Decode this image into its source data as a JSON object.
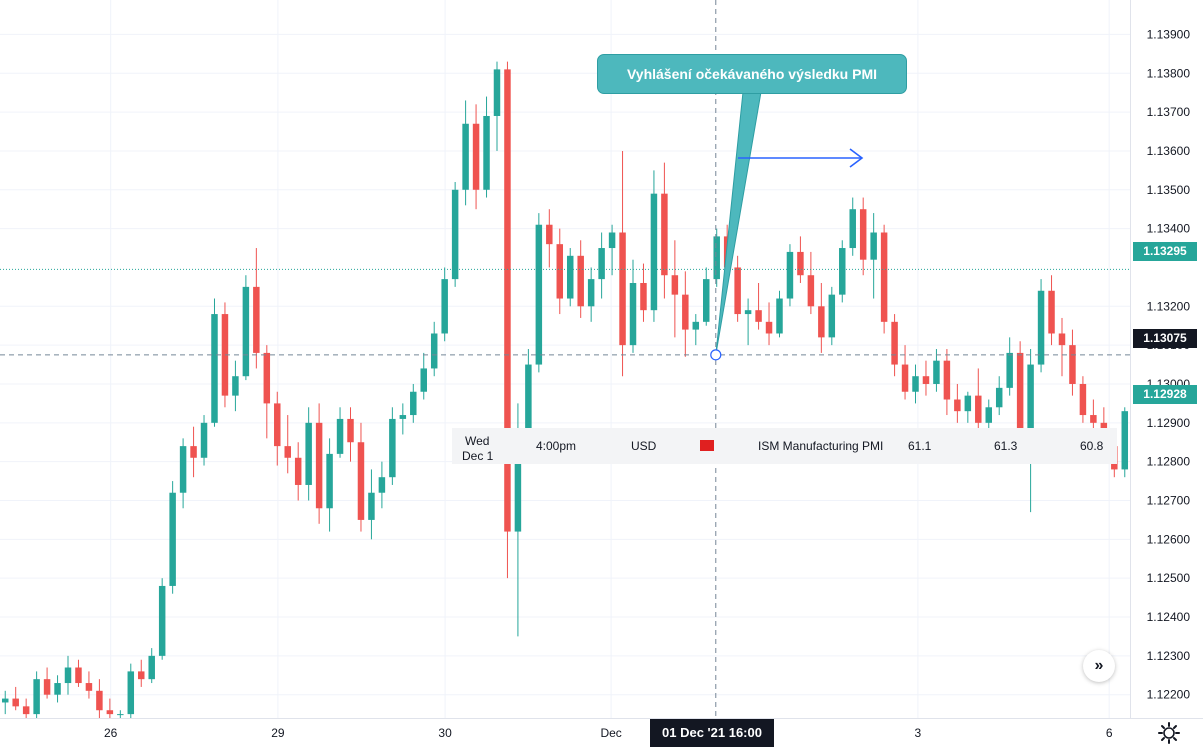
{
  "chart_data": {
    "type": "candlestick",
    "symbol_hint": "EURUSD",
    "y_axis": {
      "min": 1.1214,
      "max": 1.1395,
      "ticks": [
        1.139,
        1.138,
        1.137,
        1.136,
        1.135,
        1.134,
        1.132,
        1.131,
        1.13,
        1.129,
        1.128,
        1.127,
        1.126,
        1.125,
        1.124,
        1.123,
        1.122
      ],
      "tick_labels": [
        "1.13900",
        "1.13800",
        "1.13700",
        "1.13600",
        "1.13500",
        "1.13400",
        "1.13200",
        "1.13100",
        "1.13000",
        "1.12900",
        "1.12800",
        "1.12700",
        "1.12600",
        "1.12500",
        "1.12400",
        "1.12300",
        "1.12200"
      ]
    },
    "x_axis": {
      "labels": [
        "26",
        "29",
        "30",
        "Dec",
        "3",
        "6"
      ],
      "positions": [
        0.092,
        0.231,
        0.37,
        0.508,
        0.763,
        0.922
      ]
    },
    "grid": true,
    "current_price": {
      "value": 1.12928,
      "label": "1.12928"
    },
    "last_line": {
      "value": 1.13295,
      "label": "1.13295"
    },
    "crosshair": {
      "price": 1.13075,
      "price_label": "1.13075",
      "time_label": "01 Dec '21   16:00",
      "x_frac": 0.595
    },
    "up_color": "#26a69a",
    "down_color": "#ef5350",
    "candles_ohlc": [
      [
        1.1218,
        1.1221,
        1.1215,
        1.1219
      ],
      [
        1.1219,
        1.1222,
        1.1216,
        1.1217
      ],
      [
        1.1217,
        1.1219,
        1.1214,
        1.1215
      ],
      [
        1.1215,
        1.1226,
        1.1214,
        1.1224
      ],
      [
        1.1224,
        1.1227,
        1.1219,
        1.122
      ],
      [
        1.122,
        1.1225,
        1.1218,
        1.1223
      ],
      [
        1.1223,
        1.123,
        1.122,
        1.1227
      ],
      [
        1.1227,
        1.1229,
        1.1222,
        1.1223
      ],
      [
        1.1223,
        1.1226,
        1.1219,
        1.1221
      ],
      [
        1.1221,
        1.1224,
        1.1214,
        1.1216
      ],
      [
        1.1216,
        1.1219,
        1.1214,
        1.1215
      ],
      [
        1.1215,
        1.1216,
        1.1214,
        1.1215
      ],
      [
        1.1215,
        1.1228,
        1.1214,
        1.1226
      ],
      [
        1.1226,
        1.1229,
        1.1222,
        1.1224
      ],
      [
        1.1224,
        1.1232,
        1.1223,
        1.123
      ],
      [
        1.123,
        1.125,
        1.1229,
        1.1248
      ],
      [
        1.1248,
        1.1275,
        1.1246,
        1.1272
      ],
      [
        1.1272,
        1.1286,
        1.1268,
        1.1284
      ],
      [
        1.1284,
        1.1289,
        1.1276,
        1.1281
      ],
      [
        1.1281,
        1.1292,
        1.1279,
        1.129
      ],
      [
        1.129,
        1.1322,
        1.1289,
        1.1318
      ],
      [
        1.1318,
        1.1321,
        1.1294,
        1.1297
      ],
      [
        1.1297,
        1.1306,
        1.1293,
        1.1302
      ],
      [
        1.1302,
        1.1328,
        1.1301,
        1.1325
      ],
      [
        1.1325,
        1.1335,
        1.1304,
        1.1308
      ],
      [
        1.1308,
        1.131,
        1.1286,
        1.1295
      ],
      [
        1.1295,
        1.1298,
        1.1279,
        1.1284
      ],
      [
        1.1284,
        1.1292,
        1.1277,
        1.1281
      ],
      [
        1.1281,
        1.1285,
        1.127,
        1.1274
      ],
      [
        1.1274,
        1.1294,
        1.127,
        1.129
      ],
      [
        1.129,
        1.1295,
        1.1264,
        1.1268
      ],
      [
        1.1268,
        1.1286,
        1.1262,
        1.1282
      ],
      [
        1.1282,
        1.1294,
        1.1281,
        1.1291
      ],
      [
        1.1291,
        1.1294,
        1.128,
        1.1285
      ],
      [
        1.1285,
        1.129,
        1.1262,
        1.1265
      ],
      [
        1.1265,
        1.1278,
        1.126,
        1.1272
      ],
      [
        1.1272,
        1.128,
        1.1268,
        1.1276
      ],
      [
        1.1276,
        1.1294,
        1.1274,
        1.1291
      ],
      [
        1.1291,
        1.1295,
        1.1287,
        1.1292
      ],
      [
        1.1292,
        1.13,
        1.129,
        1.1298
      ],
      [
        1.1298,
        1.1308,
        1.1296,
        1.1304
      ],
      [
        1.1304,
        1.1316,
        1.1302,
        1.1313
      ],
      [
        1.1313,
        1.133,
        1.1311,
        1.1327
      ],
      [
        1.1327,
        1.1352,
        1.1325,
        1.135
      ],
      [
        1.135,
        1.1373,
        1.1346,
        1.1367
      ],
      [
        1.1367,
        1.1372,
        1.1345,
        1.135
      ],
      [
        1.135,
        1.1374,
        1.1348,
        1.1369
      ],
      [
        1.1369,
        1.1383,
        1.136,
        1.1381
      ],
      [
        1.1381,
        1.1383,
        1.125,
        1.1262
      ],
      [
        1.1262,
        1.1295,
        1.1235,
        1.1285
      ],
      [
        1.1285,
        1.1309,
        1.128,
        1.1305
      ],
      [
        1.1305,
        1.1344,
        1.1303,
        1.1341
      ],
      [
        1.1341,
        1.1345,
        1.133,
        1.1336
      ],
      [
        1.1336,
        1.134,
        1.1318,
        1.1322
      ],
      [
        1.1322,
        1.1335,
        1.132,
        1.1333
      ],
      [
        1.1333,
        1.1337,
        1.1317,
        1.132
      ],
      [
        1.132,
        1.133,
        1.1316,
        1.1327
      ],
      [
        1.1327,
        1.1339,
        1.1322,
        1.1335
      ],
      [
        1.1335,
        1.1341,
        1.1328,
        1.1339
      ],
      [
        1.1339,
        1.136,
        1.1302,
        1.131
      ],
      [
        1.131,
        1.1332,
        1.1308,
        1.1326
      ],
      [
        1.1326,
        1.1331,
        1.1316,
        1.1319
      ],
      [
        1.1319,
        1.1355,
        1.1316,
        1.1349
      ],
      [
        1.1349,
        1.1357,
        1.1322,
        1.1328
      ],
      [
        1.1328,
        1.1337,
        1.1312,
        1.1323
      ],
      [
        1.1323,
        1.1329,
        1.1307,
        1.1314
      ],
      [
        1.1314,
        1.1318,
        1.131,
        1.1316
      ],
      [
        1.1316,
        1.133,
        1.1315,
        1.1327
      ],
      [
        1.1327,
        1.134,
        1.1325,
        1.1338
      ],
      [
        1.1338,
        1.1341,
        1.1326,
        1.133
      ],
      [
        1.133,
        1.1333,
        1.1316,
        1.1318
      ],
      [
        1.1318,
        1.1322,
        1.131,
        1.1319
      ],
      [
        1.1319,
        1.1326,
        1.1314,
        1.1316
      ],
      [
        1.1316,
        1.1321,
        1.131,
        1.1313
      ],
      [
        1.1313,
        1.1324,
        1.1312,
        1.1322
      ],
      [
        1.1322,
        1.1336,
        1.132,
        1.1334
      ],
      [
        1.1334,
        1.1338,
        1.1326,
        1.1328
      ],
      [
        1.1328,
        1.1334,
        1.1318,
        1.132
      ],
      [
        1.132,
        1.1326,
        1.1308,
        1.1312
      ],
      [
        1.1312,
        1.1325,
        1.131,
        1.1323
      ],
      [
        1.1323,
        1.1337,
        1.1321,
        1.1335
      ],
      [
        1.1335,
        1.1348,
        1.1333,
        1.1345
      ],
      [
        1.1345,
        1.1348,
        1.1328,
        1.1332
      ],
      [
        1.1332,
        1.1344,
        1.1322,
        1.1339
      ],
      [
        1.1339,
        1.1341,
        1.1313,
        1.1316
      ],
      [
        1.1316,
        1.1318,
        1.1302,
        1.1305
      ],
      [
        1.1305,
        1.131,
        1.1296,
        1.1298
      ],
      [
        1.1298,
        1.1305,
        1.1295,
        1.1302
      ],
      [
        1.1302,
        1.1306,
        1.1297,
        1.13
      ],
      [
        1.13,
        1.1309,
        1.1298,
        1.1306
      ],
      [
        1.1306,
        1.1309,
        1.1292,
        1.1296
      ],
      [
        1.1296,
        1.13,
        1.129,
        1.1293
      ],
      [
        1.1293,
        1.1298,
        1.129,
        1.1297
      ],
      [
        1.1297,
        1.1304,
        1.1288,
        1.129
      ],
      [
        1.129,
        1.1296,
        1.1283,
        1.1294
      ],
      [
        1.1294,
        1.1302,
        1.1292,
        1.1299
      ],
      [
        1.1299,
        1.1312,
        1.1297,
        1.1308
      ],
      [
        1.1308,
        1.1311,
        1.128,
        1.1286
      ],
      [
        1.1286,
        1.1309,
        1.1267,
        1.1305
      ],
      [
        1.1305,
        1.1327,
        1.1303,
        1.1324
      ],
      [
        1.1324,
        1.1328,
        1.131,
        1.1313
      ],
      [
        1.1313,
        1.1317,
        1.1302,
        1.131
      ],
      [
        1.131,
        1.1314,
        1.1297,
        1.13
      ],
      [
        1.13,
        1.1302,
        1.129,
        1.1292
      ],
      [
        1.1292,
        1.1296,
        1.1286,
        1.129
      ],
      [
        1.129,
        1.1294,
        1.128,
        1.1284
      ],
      [
        1.1284,
        1.1287,
        1.1276,
        1.1278
      ],
      [
        1.1278,
        1.1294,
        1.1276,
        1.1293
      ]
    ],
    "annotations": [
      {
        "type": "callout",
        "text": "Vyhlášení očekávaného výsledku PMI"
      },
      {
        "type": "arrow",
        "direction": "right"
      }
    ],
    "event": {
      "day": "Wed",
      "date": "Dec 1",
      "time": "4:00pm",
      "currency": "USD",
      "name": "ISM Manufacturing PMI",
      "actual": "61.1",
      "forecast": "61.3",
      "previous": "60.8",
      "impact_color": "#e02020"
    }
  }
}
